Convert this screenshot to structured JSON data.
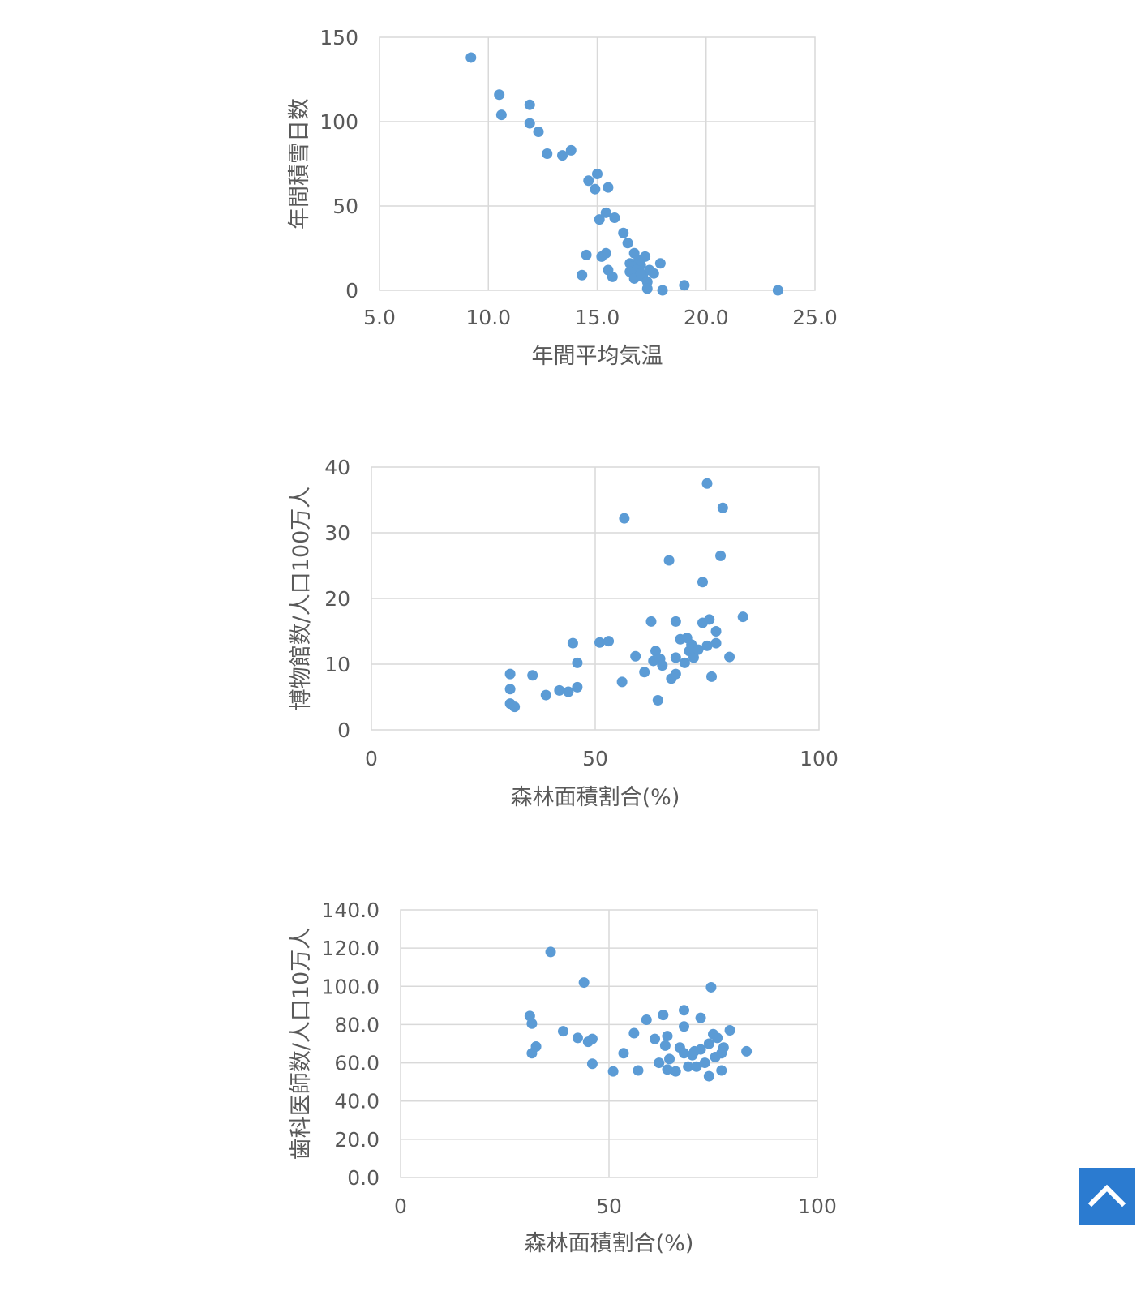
{
  "chart_data": [
    {
      "type": "scatter",
      "title": "",
      "xlabel": "年間平均気温",
      "ylabel": "年間積雪日数",
      "xlim": [
        5.0,
        25.0
      ],
      "ylim": [
        0,
        150
      ],
      "xticks": [
        "5.0",
        "10.0",
        "15.0",
        "20.0",
        "25.0"
      ],
      "yticks": [
        "0",
        "50",
        "100",
        "150"
      ],
      "grid": true,
      "legend": "none",
      "color": "#5b9bd5",
      "points": [
        [
          9.2,
          138
        ],
        [
          10.5,
          116
        ],
        [
          10.6,
          104
        ],
        [
          11.9,
          110
        ],
        [
          11.9,
          99
        ],
        [
          12.3,
          94
        ],
        [
          12.7,
          81
        ],
        [
          13.4,
          80
        ],
        [
          13.8,
          83
        ],
        [
          14.6,
          65
        ],
        [
          15.0,
          69
        ],
        [
          14.9,
          60
        ],
        [
          15.5,
          61
        ],
        [
          15.1,
          42
        ],
        [
          15.4,
          46
        ],
        [
          15.8,
          43
        ],
        [
          16.2,
          34
        ],
        [
          16.4,
          28
        ],
        [
          16.5,
          16
        ],
        [
          16.7,
          22
        ],
        [
          16.9,
          18
        ],
        [
          17.2,
          20
        ],
        [
          17.0,
          15
        ],
        [
          17.4,
          12
        ],
        [
          17.6,
          10
        ],
        [
          17.9,
          16
        ],
        [
          16.6,
          14
        ],
        [
          16.8,
          12
        ],
        [
          16.5,
          11
        ],
        [
          17.1,
          8
        ],
        [
          17.3,
          5
        ],
        [
          16.7,
          7
        ],
        [
          17.0,
          10
        ],
        [
          17.3,
          1
        ],
        [
          15.2,
          20
        ],
        [
          15.4,
          22
        ],
        [
          15.5,
          12
        ],
        [
          15.7,
          8
        ],
        [
          14.5,
          21
        ],
        [
          14.3,
          9
        ],
        [
          18.0,
          0
        ],
        [
          19.0,
          3
        ],
        [
          23.3,
          0
        ]
      ]
    },
    {
      "type": "scatter",
      "title": "",
      "xlabel": "森林面積割合(%)",
      "ylabel": "博物館数/人口100万人",
      "xlim": [
        0,
        100
      ],
      "ylim": [
        0,
        40
      ],
      "xticks": [
        "0",
        "50",
        "100"
      ],
      "yticks": [
        "0",
        "10",
        "20",
        "30",
        "40"
      ],
      "grid": true,
      "legend": "none",
      "color": "#5b9bd5",
      "points": [
        [
          31,
          8.5
        ],
        [
          31,
          6.2
        ],
        [
          31,
          4
        ],
        [
          32,
          3.5
        ],
        [
          36,
          8.3
        ],
        [
          39,
          5.3
        ],
        [
          42,
          6
        ],
        [
          44,
          5.8
        ],
        [
          45,
          13.2
        ],
        [
          46,
          6.5
        ],
        [
          46,
          10.2
        ],
        [
          51,
          13.3
        ],
        [
          53,
          13.5
        ],
        [
          56,
          7.3
        ],
        [
          56.5,
          32.2
        ],
        [
          59,
          11.2
        ],
        [
          61,
          8.8
        ],
        [
          62.5,
          16.5
        ],
        [
          63,
          10.5
        ],
        [
          63.5,
          12
        ],
        [
          64,
          4.5
        ],
        [
          64.5,
          10.8
        ],
        [
          65,
          9.8
        ],
        [
          66.5,
          25.8
        ],
        [
          67,
          7.8
        ],
        [
          68,
          8.5
        ],
        [
          68,
          16.5
        ],
        [
          68,
          11
        ],
        [
          69,
          13.8
        ],
        [
          70,
          10.2
        ],
        [
          70.5,
          14
        ],
        [
          71,
          12
        ],
        [
          71.5,
          13
        ],
        [
          72,
          11
        ],
        [
          73,
          12.2
        ],
        [
          74,
          22.5
        ],
        [
          74,
          16.3
        ],
        [
          75,
          37.5
        ],
        [
          75,
          12.8
        ],
        [
          75.5,
          16.8
        ],
        [
          76,
          8.1
        ],
        [
          77,
          13.2
        ],
        [
          77,
          15
        ],
        [
          78,
          26.5
        ],
        [
          78.5,
          33.8
        ],
        [
          80,
          11.1
        ],
        [
          83,
          17.2
        ]
      ]
    },
    {
      "type": "scatter",
      "title": "",
      "xlabel": "森林面積割合(%)",
      "ylabel": "歯科医師数/人口10万人",
      "xlim": [
        0,
        100
      ],
      "ylim": [
        0,
        140
      ],
      "xticks": [
        "0",
        "50",
        "100"
      ],
      "yticks": [
        "0.0",
        "20.0",
        "40.0",
        "60.0",
        "80.0",
        "100.0",
        "120.0",
        "140.0"
      ],
      "grid": true,
      "legend": "none",
      "color": "#5b9bd5",
      "points": [
        [
          31,
          84.5
        ],
        [
          31.5,
          80.5
        ],
        [
          31.5,
          65
        ],
        [
          32.5,
          68.5
        ],
        [
          36,
          118
        ],
        [
          39,
          76.5
        ],
        [
          42.5,
          73
        ],
        [
          44,
          102
        ],
        [
          45,
          71
        ],
        [
          46,
          72.5
        ],
        [
          46,
          59.5
        ],
        [
          51,
          55.5
        ],
        [
          53.5,
          65
        ],
        [
          56,
          75.5
        ],
        [
          57,
          56
        ],
        [
          59,
          82.5
        ],
        [
          61,
          72.5
        ],
        [
          62,
          60
        ],
        [
          63,
          85
        ],
        [
          63.5,
          69
        ],
        [
          64,
          56.5
        ],
        [
          64,
          74
        ],
        [
          64.5,
          62
        ],
        [
          66,
          55.5
        ],
        [
          67,
          68
        ],
        [
          68,
          79
        ],
        [
          68,
          65
        ],
        [
          68,
          87.5
        ],
        [
          69,
          58
        ],
        [
          70,
          64
        ],
        [
          70.5,
          66
        ],
        [
          71,
          58
        ],
        [
          72,
          67
        ],
        [
          72,
          83.5
        ],
        [
          73,
          60
        ],
        [
          74,
          53
        ],
        [
          74,
          70
        ],
        [
          74.5,
          99.5
        ],
        [
          75,
          75
        ],
        [
          75.5,
          63
        ],
        [
          76,
          73
        ],
        [
          77,
          65
        ],
        [
          77,
          56
        ],
        [
          77.5,
          68
        ],
        [
          79,
          77
        ],
        [
          83,
          66
        ]
      ]
    }
  ],
  "back_to_top": {
    "icon": "chevron-up-icon",
    "color": "#2b7bd0"
  }
}
